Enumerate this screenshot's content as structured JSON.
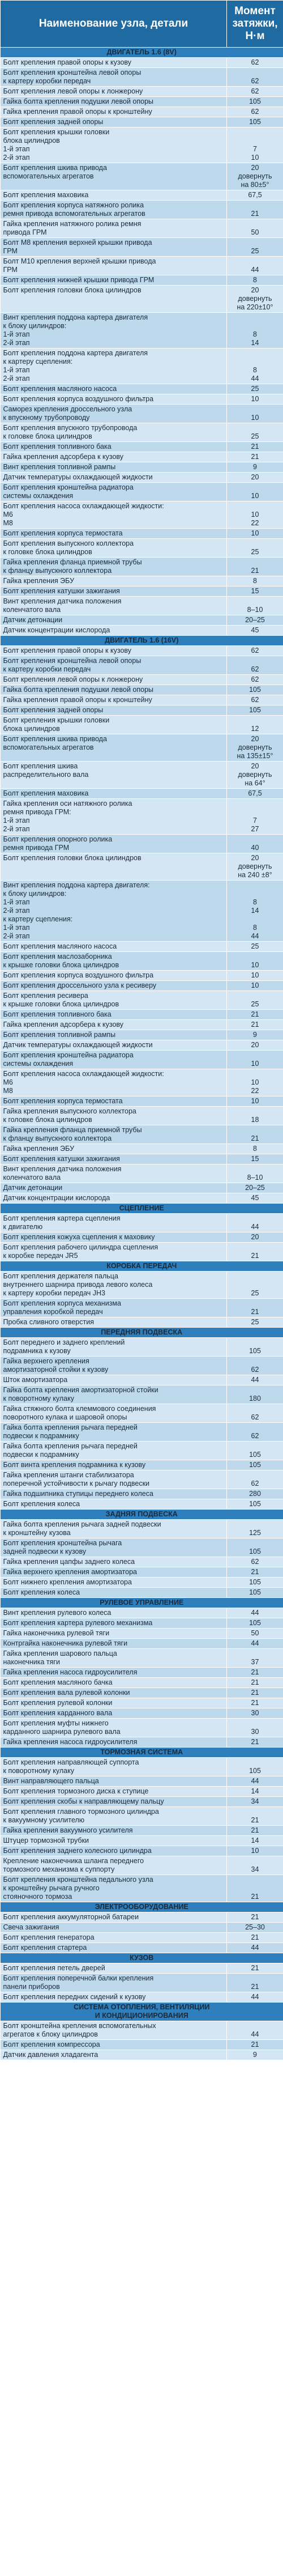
{
  "header": {
    "name": "Наименование узла, детали",
    "torque": "Момент затяжки, Н·м"
  },
  "rows": [
    {
      "t": "s",
      "l": "ДВИГАТЕЛЬ 1.6 (8V)"
    },
    {
      "l": "Болт крепления правой опоры к кузову",
      "v": "62"
    },
    {
      "l": "Болт крепления кронштейна левой опоры\nк картеру коробки передач",
      "v": "62"
    },
    {
      "l": "Болт крепления левой опоры к лонжерону",
      "v": "62"
    },
    {
      "l": "Гайка болта крепления подушки левой опоры",
      "v": "105"
    },
    {
      "l": "Гайка крепления правой опоры к кронштейну",
      "v": "62"
    },
    {
      "l": "Болт крепления задней опоры",
      "v": "105"
    },
    {
      "l": "Болт крепления крышки головки\nблока цилиндров\n1-й этап\n2-й этап",
      "v": "\n\n7\n10"
    },
    {
      "l": "Болт крепления шкива привода\nвспомогательных агрегатов",
      "v": "20\nдовернуть\nна 80±5°"
    },
    {
      "l": "Болт крепления маховика",
      "v": "67,5"
    },
    {
      "l": "Болт крепления корпуса натяжного ролика\nремня привода вспомогательных агрегатов",
      "v": "21"
    },
    {
      "l": "Гайка крепления натяжного ролика ремня\nпривода ГРМ",
      "v": "50"
    },
    {
      "l": "Болт М8 крепления верхней крышки привода\nГРМ",
      "v": "25"
    },
    {
      "l": "Болт М10 крепления верхней крышки привода\nГРМ",
      "v": "44"
    },
    {
      "l": "Болт крепления нижней крышки привода ГРМ",
      "v": "8"
    },
    {
      "l": "Болт крепления головки блока цилиндров",
      "v": "20\nдовернуть\nна 220±10°"
    },
    {
      "l": "Винт крепления поддона картера двигателя\nк блоку цилиндров:\n1-й этап\n2-й этап",
      "v": "\n\n8\n14"
    },
    {
      "l": "Болт крепления поддона картера двигателя\nк картеру сцепления:\n1-й этап\n2-й этап",
      "v": "\n\n8\n44"
    },
    {
      "l": "Болт крепления масляного насоса",
      "v": "25"
    },
    {
      "l": "Болт крепления корпуса воздушного фильтра",
      "v": "10"
    },
    {
      "l": "Саморез крепления дроссельного узла\nк впускному трубопроводу",
      "v": "10"
    },
    {
      "l": "Болт крепления впускного трубопровода\nк головке блока цилиндров",
      "v": "25"
    },
    {
      "l": "Болт крепления топливного бака",
      "v": "21"
    },
    {
      "l": "Гайка крепления адсорбера к кузову",
      "v": "21"
    },
    {
      "l": "Винт крепления топливной рампы",
      "v": "9"
    },
    {
      "l": "Датчик температуры охлаждающей жидкости",
      "v": "20"
    },
    {
      "l": "Болт крепления кронштейна радиатора\nсистемы охлаждения",
      "v": "10"
    },
    {
      "l": "Болт крепления насоса охлаждающей жидкости:\nМ6\nМ8",
      "v": "\n10\n22"
    },
    {
      "l": "Болт крепления корпуса термостата",
      "v": "10"
    },
    {
      "l": "Болт крепления выпускного коллектора\nк головке блока цилиндров",
      "v": "25"
    },
    {
      "l": "Гайка крепления фланца приемной трубы\nк фланцу выпускного коллектора",
      "v": "21"
    },
    {
      "l": "Гайка крепления ЭБУ",
      "v": "8"
    },
    {
      "l": "Болт крепления катушки зажигания",
      "v": "15"
    },
    {
      "l": "Винт крепления датчика положения\nколенчатого вала",
      "v": "8–10"
    },
    {
      "l": "Датчик детонации",
      "v": "20–25"
    },
    {
      "l": "Датчик концентрации кислорода",
      "v": "45"
    },
    {
      "t": "s",
      "l": "ДВИГАТЕЛЬ 1.6 (16V)"
    },
    {
      "l": "Болт крепления правой опоры к кузову",
      "v": "62"
    },
    {
      "l": "Болт крепления кронштейна левой опоры\nк картеру коробки передач",
      "v": "62"
    },
    {
      "l": "Болт крепления левой опоры к лонжерону",
      "v": "62"
    },
    {
      "l": "Гайка болта крепления подушки левой опоры",
      "v": "105"
    },
    {
      "l": "Гайка крепления правой опоры к кронштейну",
      "v": "62"
    },
    {
      "l": "Болт крепления задней опоры",
      "v": "105"
    },
    {
      "l": "Болт крепления крышки головки\nблока цилиндров",
      "v": "12"
    },
    {
      "l": "Болт крепления шкива привода\nвспомогательных агрегатов",
      "v": "20\nдовернуть\nна 135±15°"
    },
    {
      "l": "Болт крепления шкива\nраспределительного вала",
      "v": "20\nдовернуть\nна 64°"
    },
    {
      "l": "Болт крепления маховика",
      "v": "67,5"
    },
    {
      "l": "Гайка крепления оси натяжного ролика\nремня привода ГРМ:\n1-й этап\n2-й этап",
      "v": "\n\n7\n27"
    },
    {
      "l": "Болт крепления опорного ролика\nремня привода ГРМ",
      "v": "40"
    },
    {
      "l": "Болт крепления головки блока цилиндров",
      "v": "20\nдовернуть\nна 240 ±8°"
    },
    {
      "l": "Винт крепления поддона картера двигателя:\nк блоку цилиндров:\n1-й этап\n2-й этап\nк картеру сцепления:\n1-й этап\n2-й этап",
      "v": "\n\n8\n14\n\n8\n44"
    },
    {
      "l": "Болт крепления масляного насоса",
      "v": "25"
    },
    {
      "l": "Болт крепления маслозаборника\nк крышке головки блока цилиндров",
      "v": "10"
    },
    {
      "l": "Болт крепления корпуса воздушного фильтра",
      "v": "10"
    },
    {
      "l": "Болт крепления дроссельного узла к ресиверу",
      "v": "10"
    },
    {
      "l": "Болт крепления ресивера\nк крышке головки блока цилиндров",
      "v": "25"
    },
    {
      "l": "Болт крепления топливного бака",
      "v": "21"
    },
    {
      "l": "Гайка крепления адсорбера к кузову",
      "v": "21"
    },
    {
      "l": "Болт крепления топливной рампы",
      "v": "9"
    },
    {
      "l": "Датчик температуры охлаждающей жидкости",
      "v": "20"
    },
    {
      "l": "Болт крепления кронштейна радиатора\nсистемы охлаждения",
      "v": "10"
    },
    {
      "l": "Болт крепления насоса охлаждающей жидкости:\nМ6\nМ8",
      "v": "\n10\n22"
    },
    {
      "l": "Болт крепления корпуса термостата",
      "v": "10"
    },
    {
      "l": "Гайка крепления выпускного коллектора\nк головке блока цилиндров",
      "v": "18"
    },
    {
      "l": "Гайка крепления фланца приемной трубы\nк фланцу выпускного коллектора",
      "v": "21"
    },
    {
      "l": "Гайка крепления ЭБУ",
      "v": "8"
    },
    {
      "l": "Болт крепления катушки зажигания",
      "v": "15"
    },
    {
      "l": "Винт крепления датчика положения\nколенчатого вала",
      "v": "8–10"
    },
    {
      "l": "Датчик детонации",
      "v": "20–25"
    },
    {
      "l": "Датчик концентрации кислорода",
      "v": "45"
    },
    {
      "t": "s",
      "l": "СЦЕПЛЕНИЕ"
    },
    {
      "l": "Болт крепления картера сцепления\nк двигателю",
      "v": "44"
    },
    {
      "l": "Болт крепления кожуха сцепления к маховику",
      "v": "20"
    },
    {
      "l": "Болт крепления рабочего цилиндра сцепления\nк коробке передач JR5",
      "v": "21"
    },
    {
      "t": "s",
      "l": "КОРОБКА ПЕРЕДАЧ"
    },
    {
      "l": "Болт крепления держателя пальца\nвнутреннего шарнира привода левого колеса\nк картеру коробки передач JH3",
      "v": "25"
    },
    {
      "l": "Болт крепления корпуса механизма\nуправления коробкой передач",
      "v": "21"
    },
    {
      "l": "Пробка сливного отверстия",
      "v": "25"
    },
    {
      "t": "s",
      "l": "ПЕРЕДНЯЯ ПОДВЕСКА"
    },
    {
      "l": "Болт переднего и заднего креплений\nподрамника к кузову",
      "v": "105"
    },
    {
      "l": "Гайка верхнего крепления\nамортизаторной стойки к кузову",
      "v": "62"
    },
    {
      "l": "Шток амортизатора",
      "v": "44"
    },
    {
      "l": "Гайка болта крепления амортизаторной стойки\nк поворотному кулаку",
      "v": "180"
    },
    {
      "l": "Гайка стяжного болта клеммового соединения\nповоротного кулака и шаровой опоры",
      "v": "62"
    },
    {
      "l": "Гайка болта крепления рычага передней\nподвески к подрамнику",
      "v": "62"
    },
    {
      "l": "Гайка болта крепления рычага передней\nподвески к подрамнику",
      "v": "105"
    },
    {
      "l": "Болт винта крепления подрамника к кузову",
      "v": "105"
    },
    {
      "l": "Гайка крепления штанги стабилизатора\nпоперечной устойчивости к рычагу подвески",
      "v": "62"
    },
    {
      "l": "Гайка подшипника ступицы переднего колеса",
      "v": "280"
    },
    {
      "l": "Болт крепления колеса",
      "v": "105"
    },
    {
      "t": "s",
      "l": "ЗАДНЯЯ ПОДВЕСКА"
    },
    {
      "l": "Гайка болта крепления рычага задней подвески\nк кронштейну кузова",
      "v": "125"
    },
    {
      "l": "Болт крепления кронштейна рычага\nзадней подвески к кузову",
      "v": "105"
    },
    {
      "l": "Гайка крепления цапфы заднего колеса",
      "v": "62"
    },
    {
      "l": "Гайка верхнего крепления амортизатора",
      "v": "21"
    },
    {
      "l": "Болт нижнего крепления амортизатора",
      "v": "105"
    },
    {
      "l": "Болт крепления колеса",
      "v": "105"
    },
    {
      "t": "s",
      "l": "РУЛЕВОЕ УПРАВЛЕНИЕ"
    },
    {
      "l": "Винт крепления рулевого колеса",
      "v": "44"
    },
    {
      "l": "Болт крепления картера рулевого механизма",
      "v": "105"
    },
    {
      "l": "Гайка наконечника рулевой тяги",
      "v": "50"
    },
    {
      "l": "Контргайка наконечника рулевой тяги",
      "v": "44"
    },
    {
      "l": "Гайка крепления шарового пальца\nнаконечника тяги",
      "v": "37"
    },
    {
      "l": "Гайка крепления насоса гидроусилителя",
      "v": "21"
    },
    {
      "l": "Болт крепления масляного бачка",
      "v": "21"
    },
    {
      "l": "Болт крепления вала рулевой колонки",
      "v": "21"
    },
    {
      "l": "Болт крепления рулевой колонки",
      "v": "21"
    },
    {
      "l": "Болт крепления карданного вала",
      "v": "30"
    },
    {
      "l": "Болт крепления муфты нижнего\nкарданного шарнира рулевого вала",
      "v": "30"
    },
    {
      "l": "Гайка крепления насоса гидроусилителя",
      "v": "21"
    },
    {
      "t": "s",
      "l": "ТОРМОЗНАЯ СИСТЕМА"
    },
    {
      "l": "Болт крепления направляющей суппорта\nк поворотному кулаку",
      "v": "105"
    },
    {
      "l": "Винт направляющего пальца",
      "v": "44"
    },
    {
      "l": "Болт крепления тормозного диска к ступице",
      "v": "14"
    },
    {
      "l": "Болт крепления скобы к направляющему пальцу",
      "v": "34"
    },
    {
      "l": "Болт крепления главного тормозного цилиндра\nк вакуумному усилителю",
      "v": "21"
    },
    {
      "l": "Гайка крепления вакуумного усилителя",
      "v": "21"
    },
    {
      "l": "Штуцер тормозной трубки",
      "v": "14"
    },
    {
      "l": "Болт крепления заднего колесного цилиндра",
      "v": "10"
    },
    {
      "l": "Крепление наконечника шланга переднего\nтормозного механизма к суппорту",
      "v": "34"
    },
    {
      "l": "Болт крепления кронштейна педального узла\nк кронштейну рычага ручного\nстояночного тормоза",
      "v": "21"
    },
    {
      "t": "s",
      "l": "ЭЛЕКТРООБОРУДОВАНИЕ"
    },
    {
      "l": "Болт крепления аккумуляторной батареи",
      "v": "21"
    },
    {
      "l": "Свеча зажигания",
      "v": "25–30"
    },
    {
      "l": "Болт крепления генератора",
      "v": "21"
    },
    {
      "l": "Болт крепления стартера",
      "v": "44"
    },
    {
      "t": "s",
      "l": "КУЗОВ"
    },
    {
      "l": "Болт крепления петель дверей",
      "v": "21"
    },
    {
      "l": "Болт крепления поперечной балки крепления\nпанели приборов",
      "v": "21"
    },
    {
      "l": "Болт крепления передних сидений к кузову",
      "v": "44"
    },
    {
      "t": "s",
      "l": "СИСТЕМА ОТОПЛЕНИЯ, ВЕНТИЛЯЦИИ\nИ КОНДИЦИОНИРОВАНИЯ"
    },
    {
      "l": "Болт кронштейна крепления вспомогательных\nагрегатов к блоку цилиндров",
      "v": "44"
    },
    {
      "l": "Болт крепления компрессора",
      "v": "21"
    },
    {
      "l": "Датчик давления хладагента",
      "v": "9"
    }
  ]
}
